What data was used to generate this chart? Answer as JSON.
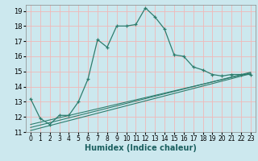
{
  "title": "",
  "xlabel": "Humidex (Indice chaleur)",
  "background_color": "#cce8ee",
  "grid_color": "#f0b8b8",
  "line_color": "#2e7d6e",
  "xlim": [
    -0.5,
    23.5
  ],
  "ylim": [
    11,
    19.4
  ],
  "xticks": [
    0,
    1,
    2,
    3,
    4,
    5,
    6,
    7,
    8,
    9,
    10,
    11,
    12,
    13,
    14,
    15,
    16,
    17,
    18,
    19,
    20,
    21,
    22,
    23
  ],
  "yticks": [
    11,
    12,
    13,
    14,
    15,
    16,
    17,
    18,
    19
  ],
  "line1_x": [
    0,
    1,
    2,
    3,
    4,
    5,
    6,
    7,
    8,
    9,
    10,
    11,
    12,
    13,
    14,
    15,
    16,
    17,
    18,
    19,
    20,
    21,
    22,
    23
  ],
  "line1_y": [
    13.2,
    11.9,
    11.5,
    12.1,
    12.1,
    13.0,
    14.5,
    17.1,
    16.6,
    18.0,
    18.0,
    18.1,
    19.2,
    18.6,
    17.8,
    16.1,
    16.0,
    15.3,
    15.1,
    14.8,
    14.7,
    14.8,
    14.8,
    14.8
  ],
  "line2_x": [
    0,
    23
  ],
  "line2_y": [
    11.5,
    14.9
  ],
  "line3_x": [
    0,
    23
  ],
  "line3_y": [
    11.3,
    14.95
  ],
  "line4_x": [
    0,
    23
  ],
  "line4_y": [
    11.1,
    14.85
  ],
  "xlabel_fontsize": 7,
  "xlabel_color": "#1a5f5f",
  "tick_fontsize": 5.5
}
